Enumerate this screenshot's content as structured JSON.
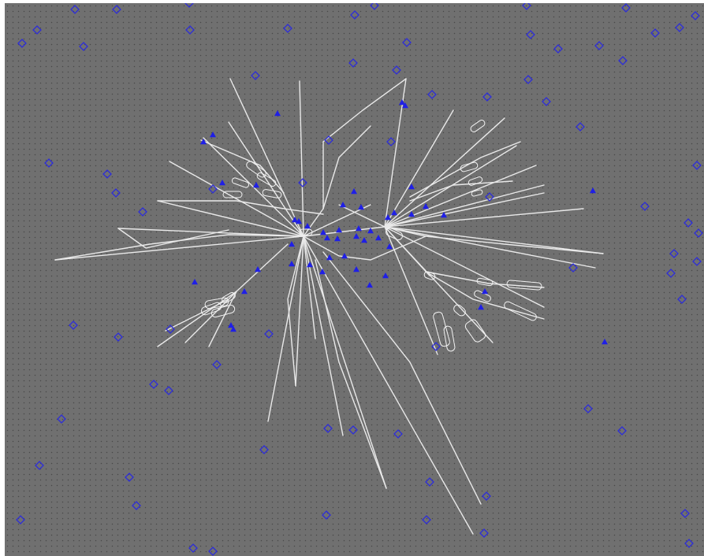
{
  "map": {
    "background_color": "#707070",
    "track_color": "#e9e9e9",
    "diamond_color": "#2d2dd8",
    "triangle_color": "#1f1fe6",
    "diamond_icon": "diamond-outline-icon",
    "triangle_icon": "filled-triangle-icon"
  }
}
